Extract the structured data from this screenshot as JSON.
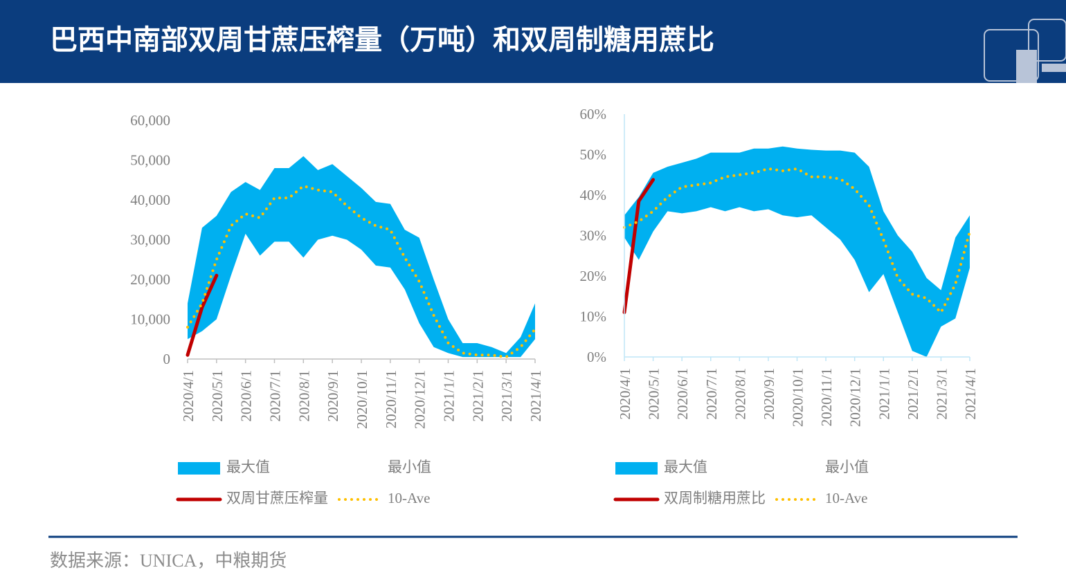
{
  "header": {
    "title": "巴西中南部双周甘蔗压榨量（万吨）和双周制糖用蔗比"
  },
  "footer": {
    "source": "数据来源：UNICA，中粮期货"
  },
  "chart_data": [
    {
      "type": "area",
      "categories": [
        "2020/4/1",
        null,
        "2020/5/1",
        null,
        "2020/6/1",
        null,
        "2020/7/1",
        null,
        "2020/8/1",
        null,
        "2020/9/1",
        null,
        "2020/10/1",
        null,
        "2020/11/1",
        null,
        "2020/12/1",
        null,
        "2021/1/1",
        null,
        "2021/2/1",
        null,
        "2021/3/1",
        null,
        "2021/4/1"
      ],
      "ylim": [
        0,
        60000
      ],
      "yticks": [
        0,
        {
          "value": 10000,
          "label": "10,000"
        },
        {
          "value": 20000,
          "label": "20,000"
        },
        {
          "value": 30000,
          "label": "30,000"
        },
        {
          "value": 40000,
          "label": "40,000"
        },
        {
          "value": 50000,
          "label": "50,000"
        },
        {
          "value": 60000,
          "label": "60,000"
        }
      ],
      "series": [
        {
          "name": "最大值",
          "style": "area",
          "color": "#00b0f0",
          "values": [
            14000,
            33000,
            36000,
            42000,
            44500,
            42500,
            48000,
            48000,
            51000,
            47500,
            49000,
            46000,
            43000,
            39500,
            39000,
            32500,
            30500,
            20000,
            10000,
            4000,
            4000,
            3000,
            1500,
            5500,
            14000
          ]
        },
        {
          "name": "最小值",
          "style": "area",
          "color": "#ffffff",
          "values": [
            5000,
            7000,
            10000,
            21000,
            31500,
            26000,
            29500,
            29500,
            25500,
            30000,
            31000,
            30000,
            27500,
            23500,
            23000,
            17500,
            9000,
            3000,
            1500,
            500,
            500,
            500,
            500,
            500,
            5000
          ]
        },
        {
          "name": "双周甘蔗压榨量",
          "style": "line",
          "color": "#c00000",
          "values": [
            1000,
            13000,
            21000,
            null,
            null,
            null,
            null,
            null,
            null,
            null,
            null,
            null,
            null,
            null,
            null,
            null,
            null,
            null,
            null,
            null,
            null,
            null,
            null,
            null,
            null
          ]
        },
        {
          "name": "10-Ave",
          "style": "dotted",
          "color": "#ffc000",
          "values": [
            8000,
            14000,
            25000,
            33500,
            36500,
            35500,
            40500,
            40500,
            43500,
            42500,
            42000,
            38500,
            35500,
            33500,
            32500,
            25500,
            19500,
            11000,
            4000,
            1500,
            1000,
            1000,
            500,
            3000,
            7500
          ]
        }
      ]
    },
    {
      "type": "area",
      "categories": [
        "2020/4/1",
        null,
        "2020/5/1",
        null,
        "2020/6/1",
        null,
        "2020/7/1",
        null,
        "2020/8/1",
        null,
        "2020/9/1",
        null,
        "2020/10/1",
        null,
        "2020/11/1",
        null,
        "2020/12/1",
        null,
        "2021/1/1",
        null,
        "2021/2/1",
        null,
        "2021/3/1",
        null,
        "2021/4/1"
      ],
      "ylim": [
        0,
        60
      ],
      "yticks": [
        {
          "value": 0,
          "label": "0%"
        },
        {
          "value": 10,
          "label": "10%"
        },
        {
          "value": 20,
          "label": "20%"
        },
        {
          "value": 30,
          "label": "30%"
        },
        {
          "value": 40,
          "label": "40%"
        },
        {
          "value": 50,
          "label": "50%"
        },
        {
          "value": 60,
          "label": "60%"
        }
      ],
      "series": [
        {
          "name": "最大值",
          "style": "area",
          "color": "#00b0f0",
          "values": [
            35,
            39.5,
            45.5,
            47,
            48,
            49,
            50.5,
            50.5,
            50.5,
            51.5,
            51.5,
            52,
            51.5,
            51.2,
            51,
            51,
            50.5,
            47,
            36,
            30,
            26,
            19.5,
            16.5,
            29.5,
            35
          ]
        },
        {
          "name": "最小值",
          "style": "area",
          "color": "#ffffff",
          "values": [
            29.5,
            24,
            31,
            36,
            35.5,
            36,
            37,
            36,
            37,
            36,
            36.5,
            35,
            34.5,
            35,
            32,
            29,
            24,
            16,
            20.5,
            11,
            1.5,
            0,
            7.5,
            9.5,
            22
          ]
        },
        {
          "name": "双周制糖用蔗比",
          "style": "line",
          "color": "#c00000",
          "values": [
            11,
            38.5,
            43.8,
            null,
            null,
            null,
            null,
            null,
            null,
            null,
            null,
            null,
            null,
            null,
            null,
            null,
            null,
            null,
            null,
            null,
            null,
            null,
            null,
            null,
            null
          ]
        },
        {
          "name": "10-Ave",
          "style": "dotted",
          "color": "#ffc000",
          "values": [
            32,
            33.5,
            36,
            39.5,
            42,
            42.5,
            43,
            44.5,
            45,
            45.5,
            46.5,
            46,
            46.5,
            44.5,
            44.5,
            44,
            41.5,
            37.5,
            29,
            19.5,
            15.5,
            14.5,
            11,
            18,
            31
          ]
        }
      ]
    }
  ]
}
